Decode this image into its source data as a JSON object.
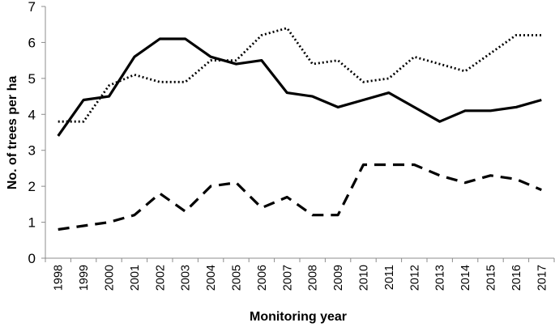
{
  "chart_data": {
    "type": "line",
    "title": "",
    "xlabel": "Monitoring year",
    "ylabel": "No. of trees per ha",
    "ylim": [
      0,
      7
    ],
    "yticks": [
      0,
      1,
      2,
      3,
      4,
      5,
      6,
      7
    ],
    "grid": false,
    "legend": "none",
    "x": [
      "1998",
      "1999",
      "2000",
      "2001",
      "2002",
      "2003",
      "2004",
      "2005",
      "2006",
      "2007",
      "2008",
      "2009",
      "2010",
      "2011",
      "2012",
      "2013",
      "2014",
      "2015",
      "2016",
      "2017"
    ],
    "series": [
      {
        "style": "solid",
        "color": "#000000",
        "values": [
          3.4,
          4.4,
          4.5,
          5.6,
          6.1,
          6.1,
          5.6,
          5.4,
          5.5,
          4.6,
          4.5,
          4.2,
          4.4,
          4.6,
          4.2,
          3.8,
          4.1,
          4.1,
          4.2,
          4.4
        ]
      },
      {
        "style": "dotted",
        "color": "#000000",
        "values": [
          3.8,
          3.8,
          4.8,
          5.1,
          4.9,
          4.9,
          5.5,
          5.5,
          6.2,
          6.4,
          5.4,
          5.5,
          4.9,
          5.0,
          5.6,
          5.4,
          5.2,
          5.7,
          6.2,
          6.2
        ]
      },
      {
        "style": "dashed",
        "color": "#000000",
        "values": [
          0.8,
          0.9,
          1.0,
          1.2,
          1.8,
          1.3,
          2.0,
          2.1,
          1.4,
          1.7,
          1.2,
          1.2,
          2.6,
          2.6,
          2.6,
          2.3,
          2.1,
          2.3,
          2.2,
          1.9
        ]
      }
    ]
  }
}
